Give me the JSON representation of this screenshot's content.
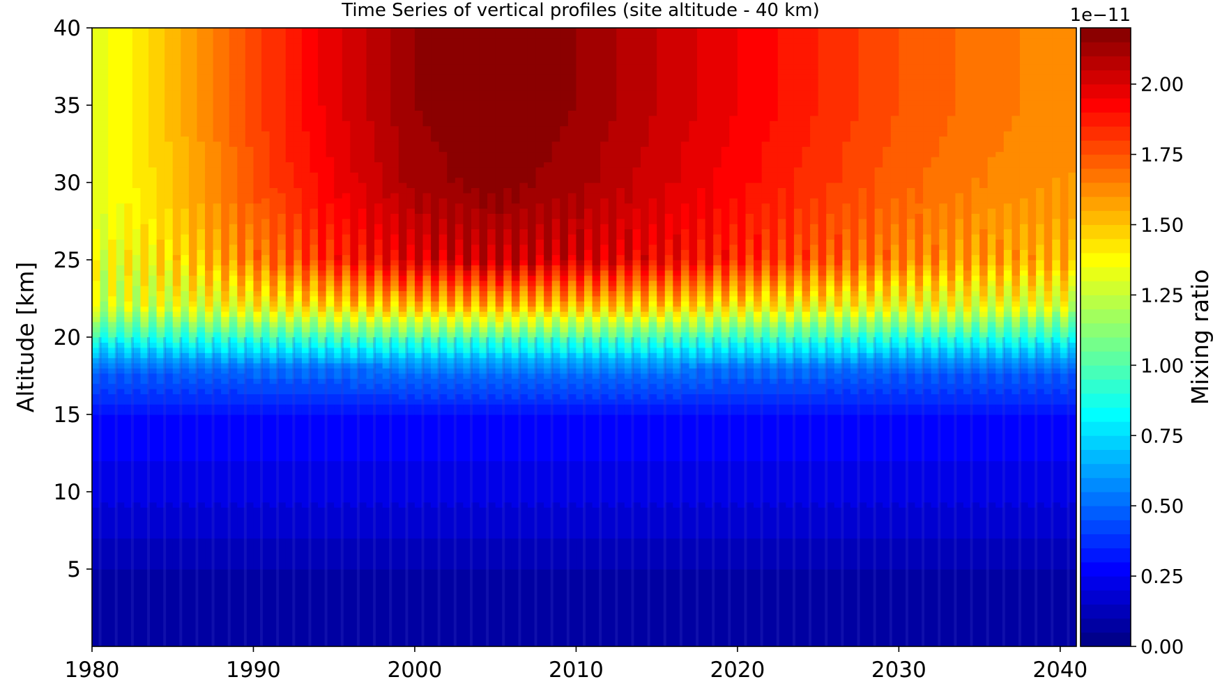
{
  "chart_data": {
    "type": "heatmap",
    "title": "Time Series of vertical profiles (site altitude - 40 km)",
    "xlabel": "",
    "ylabel": "Altitude [km]",
    "xlim": [
      1980,
      2041
    ],
    "ylim": [
      0,
      40
    ],
    "x_ticks": [
      1980,
      1990,
      2000,
      2010,
      2020,
      2030,
      2040
    ],
    "y_ticks": [
      5,
      10,
      15,
      20,
      25,
      30,
      35,
      40
    ],
    "x": [
      1980,
      1985,
      1990,
      1995,
      2000,
      2005,
      2010,
      2015,
      2020,
      2025,
      2030,
      2035,
      2040
    ],
    "y": [
      0,
      5,
      10,
      15,
      18,
      20,
      22,
      25,
      30,
      35,
      40
    ],
    "z": [
      [
        0.05,
        0.05,
        0.05,
        0.05,
        0.05,
        0.05,
        0.05,
        0.05,
        0.05,
        0.05,
        0.05,
        0.05,
        0.05
      ],
      [
        0.1,
        0.1,
        0.1,
        0.1,
        0.1,
        0.1,
        0.1,
        0.1,
        0.1,
        0.1,
        0.1,
        0.1,
        0.1
      ],
      [
        0.22,
        0.22,
        0.22,
        0.22,
        0.22,
        0.22,
        0.22,
        0.22,
        0.22,
        0.22,
        0.22,
        0.22,
        0.22
      ],
      [
        0.3,
        0.3,
        0.3,
        0.3,
        0.3,
        0.3,
        0.3,
        0.3,
        0.3,
        0.3,
        0.3,
        0.3,
        0.3
      ],
      [
        0.5,
        0.5,
        0.52,
        0.52,
        0.55,
        0.55,
        0.55,
        0.55,
        0.52,
        0.52,
        0.5,
        0.5,
        0.5
      ],
      [
        0.9,
        0.92,
        0.95,
        0.98,
        1.0,
        1.0,
        1.0,
        0.98,
        0.95,
        0.95,
        0.92,
        0.92,
        0.9
      ],
      [
        1.25,
        1.3,
        1.38,
        1.45,
        1.5,
        1.52,
        1.5,
        1.48,
        1.42,
        1.38,
        1.35,
        1.32,
        1.3
      ],
      [
        1.3,
        1.45,
        1.65,
        1.85,
        2.0,
        2.05,
        2.02,
        1.95,
        1.85,
        1.75,
        1.65,
        1.58,
        1.55
      ],
      [
        1.3,
        1.5,
        1.75,
        1.95,
        2.12,
        2.18,
        2.12,
        2.02,
        1.92,
        1.82,
        1.72,
        1.65,
        1.6
      ],
      [
        1.3,
        1.52,
        1.78,
        1.98,
        2.15,
        2.2,
        2.15,
        2.05,
        1.95,
        1.85,
        1.75,
        1.68,
        1.62
      ],
      [
        1.3,
        1.52,
        1.78,
        1.98,
        2.15,
        2.2,
        2.15,
        2.05,
        1.95,
        1.85,
        1.75,
        1.68,
        1.62
      ]
    ],
    "colorbar": {
      "label": "Mixing ratio",
      "offset_text": "1e−11",
      "range": [
        0,
        2.2
      ],
      "ticks": [
        "0.00",
        "0.25",
        "0.50",
        "0.75",
        "1.00",
        "1.25",
        "1.50",
        "1.75",
        "2.00"
      ],
      "colormap": "jet"
    },
    "grid": false
  }
}
